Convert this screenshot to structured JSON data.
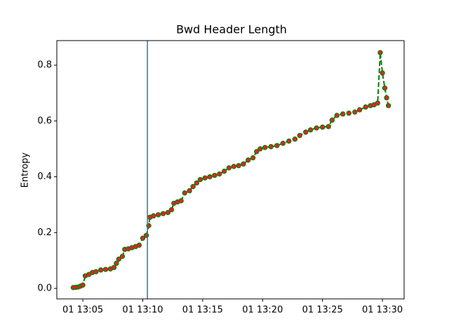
{
  "chart_data": {
    "type": "line",
    "title": "Bwd Header Length",
    "ylabel": "Entropy",
    "x": [
      4.2,
      4.4,
      4.6,
      4.8,
      5.0,
      5.2,
      5.5,
      5.8,
      6.1,
      6.5,
      6.9,
      7.3,
      7.6,
      7.8,
      8.0,
      8.3,
      8.5,
      8.8,
      9.1,
      9.4,
      9.7,
      10.0,
      10.3,
      10.5,
      10.6,
      10.9,
      11.3,
      11.7,
      12.1,
      12.4,
      12.6,
      12.9,
      13.2,
      13.5,
      13.9,
      14.2,
      14.5,
      14.8,
      15.2,
      15.6,
      16.0,
      16.4,
      16.8,
      17.2,
      17.6,
      18.0,
      18.4,
      18.8,
      19.2,
      19.5,
      19.8,
      20.2,
      20.7,
      21.2,
      21.7,
      22.2,
      22.7,
      23.1,
      23.6,
      24.0,
      24.5,
      25.0,
      25.5,
      25.8,
      26.2,
      26.7,
      27.2,
      27.7,
      28.1,
      28.6,
      29.0,
      29.3,
      29.6,
      29.82,
      30.0,
      30.2,
      30.35,
      30.5
    ],
    "series": [
      {
        "name": "Entropy",
        "color": "#008000",
        "marker_color": "#d62728",
        "values": [
          0.003,
          0.004,
          0.005,
          0.008,
          0.012,
          0.045,
          0.05,
          0.057,
          0.06,
          0.066,
          0.068,
          0.07,
          0.075,
          0.09,
          0.105,
          0.115,
          0.14,
          0.142,
          0.146,
          0.15,
          0.155,
          0.18,
          0.19,
          0.225,
          0.255,
          0.26,
          0.264,
          0.268,
          0.272,
          0.282,
          0.305,
          0.31,
          0.314,
          0.342,
          0.35,
          0.365,
          0.378,
          0.39,
          0.396,
          0.4,
          0.405,
          0.41,
          0.42,
          0.432,
          0.437,
          0.44,
          0.446,
          0.46,
          0.468,
          0.49,
          0.5,
          0.505,
          0.508,
          0.512,
          0.52,
          0.528,
          0.535,
          0.548,
          0.56,
          0.568,
          0.575,
          0.578,
          0.58,
          0.603,
          0.62,
          0.625,
          0.628,
          0.632,
          0.64,
          0.65,
          0.655,
          0.658,
          0.664,
          0.845,
          0.772,
          0.718,
          0.683,
          0.655
        ]
      }
    ],
    "vline_x": 10.39,
    "vline_color": "#1f77b4",
    "xlim": [
      2.83,
      31.81
    ],
    "xticks": [
      {
        "value": 5,
        "label": "01 13:05"
      },
      {
        "value": 10,
        "label": "01 13:10"
      },
      {
        "value": 15,
        "label": "01 13:15"
      },
      {
        "value": 20,
        "label": "01 13:20"
      },
      {
        "value": 25,
        "label": "01 13:25"
      },
      {
        "value": 30,
        "label": "01 13:30"
      }
    ],
    "ylim": [
      -0.0376,
      0.888
    ],
    "yticks": [
      {
        "value": 0,
        "label": "0.0"
      },
      {
        "value": 0.2,
        "label": "0.2"
      },
      {
        "value": 0.4,
        "label": "0.4"
      },
      {
        "value": 0.6,
        "label": "0.6"
      },
      {
        "value": 0.8,
        "label": "0.8"
      }
    ]
  }
}
